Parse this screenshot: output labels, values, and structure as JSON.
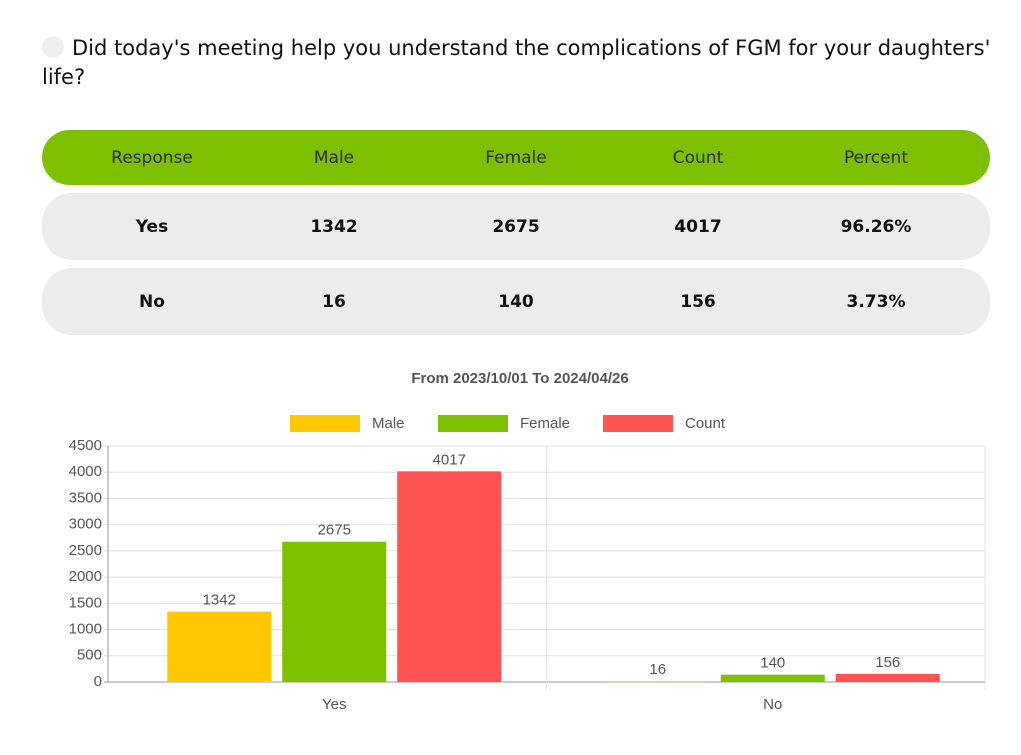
{
  "question": "Did today's meeting help you understand the complications of FGM for your daughters' life?",
  "table": {
    "headers": [
      "Response",
      "Male",
      "Female",
      "Count",
      "Percent"
    ],
    "rows": [
      [
        "Yes",
        "1342",
        "2675",
        "4017",
        "96.26%"
      ],
      [
        "No",
        "16",
        "140",
        "156",
        "3.73%"
      ]
    ]
  },
  "chart_data": {
    "type": "bar",
    "title": "From 2023/10/01 To 2024/04/26",
    "categories": [
      "Yes",
      "No"
    ],
    "series": [
      {
        "name": "Male",
        "color": "#ffc800",
        "values": [
          1342,
          16
        ]
      },
      {
        "name": "Female",
        "color": "#7dc100",
        "values": [
          2675,
          140
        ]
      },
      {
        "name": "Count",
        "color": "#ff5252",
        "values": [
          4017,
          156
        ]
      }
    ],
    "ylim": [
      0,
      4500
    ],
    "yticks": [
      0,
      500,
      1000,
      1500,
      2000,
      2500,
      3000,
      3500,
      4000,
      4500
    ],
    "grid": true,
    "legend": "top"
  }
}
